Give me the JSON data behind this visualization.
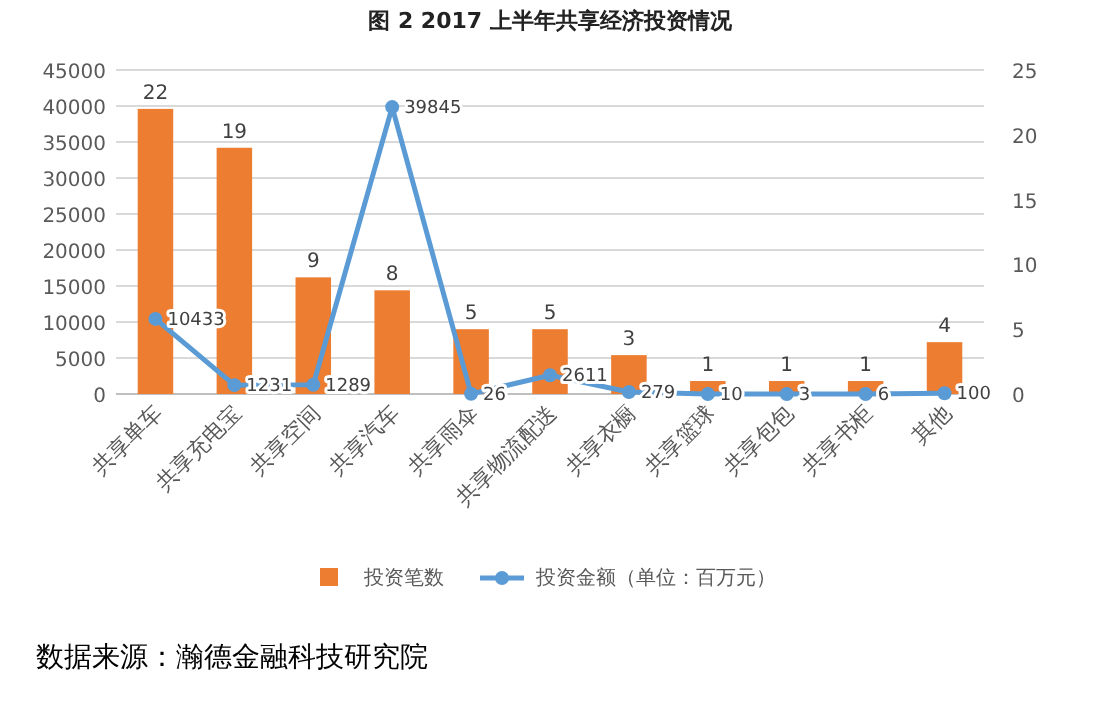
{
  "chart_data": {
    "type": "bar",
    "title": "图 2 2017 上半年共享经济投资情况",
    "categories": [
      "共享单车",
      "共享充电宝",
      "共享空间",
      "共享汽车",
      "共享雨伞",
      "共享物流配送",
      "共享衣橱",
      "共享篮球",
      "共享包包",
      "共享书柜",
      "其他"
    ],
    "series": [
      {
        "name": "投资笔数",
        "axis": "y2",
        "color": "#ed7d31",
        "values": [
          22,
          19,
          9,
          8,
          5,
          5,
          3,
          1,
          1,
          1,
          4
        ]
      },
      {
        "name": "投资金额（单位：百万元）",
        "type": "line",
        "axis": "y",
        "color": "#5b9bd5",
        "values": [
          10433,
          1231,
          1289,
          39845,
          26,
          2611,
          279,
          10,
          3,
          6,
          100
        ]
      }
    ],
    "ylim": [
      0,
      45000
    ],
    "yticks": [
      0,
      5000,
      10000,
      15000,
      20000,
      25000,
      30000,
      35000,
      40000,
      45000
    ],
    "y2lim": [
      0,
      25
    ],
    "y2ticks": [
      0,
      5,
      10,
      15,
      20,
      25
    ],
    "data_labels": true,
    "grid": "y",
    "legend": "bottom",
    "marker": "circle",
    "annotations": [
      "数据来源：瀚德金融科技研究院"
    ]
  }
}
